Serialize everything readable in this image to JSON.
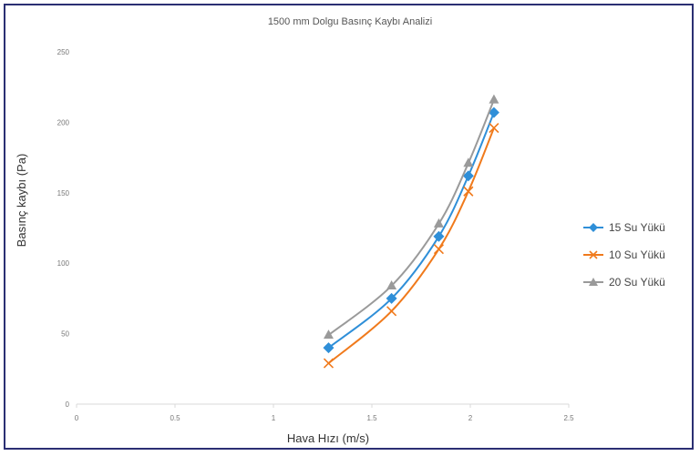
{
  "chart_data": {
    "type": "line",
    "title": "1500 mm Dolgu Basınç Kaybı Analizi",
    "xlabel": "Hava Hızı (m/s)",
    "ylabel": "Basınç kaybı (Pa)",
    "xlim": [
      0,
      2.5
    ],
    "ylim": [
      0,
      250
    ],
    "xticks": [
      "0",
      "0.5",
      "1",
      "1.5",
      "2",
      "2.5"
    ],
    "yticks": [
      "0",
      "50",
      "100",
      "150",
      "200",
      "250"
    ],
    "grid": false,
    "legend_position": "right",
    "series": [
      {
        "name": "15 Su Yükü",
        "color": "#2f8fd8",
        "marker": "diamond",
        "x": [
          1.28,
          1.6,
          1.84,
          1.99,
          2.12
        ],
        "y": [
          40,
          75,
          119,
          162,
          207
        ]
      },
      {
        "name": "10 Su Yükü",
        "color": "#f07a1c",
        "marker": "x",
        "x": [
          1.28,
          1.6,
          1.84,
          1.99,
          2.12
        ],
        "y": [
          29,
          66,
          110,
          151,
          196
        ]
      },
      {
        "name": "20 Su Yükü",
        "color": "#9a9a9a",
        "marker": "triangle",
        "x": [
          1.28,
          1.6,
          1.84,
          1.99,
          2.12
        ],
        "y": [
          49,
          84,
          128,
          171,
          216
        ]
      }
    ]
  }
}
